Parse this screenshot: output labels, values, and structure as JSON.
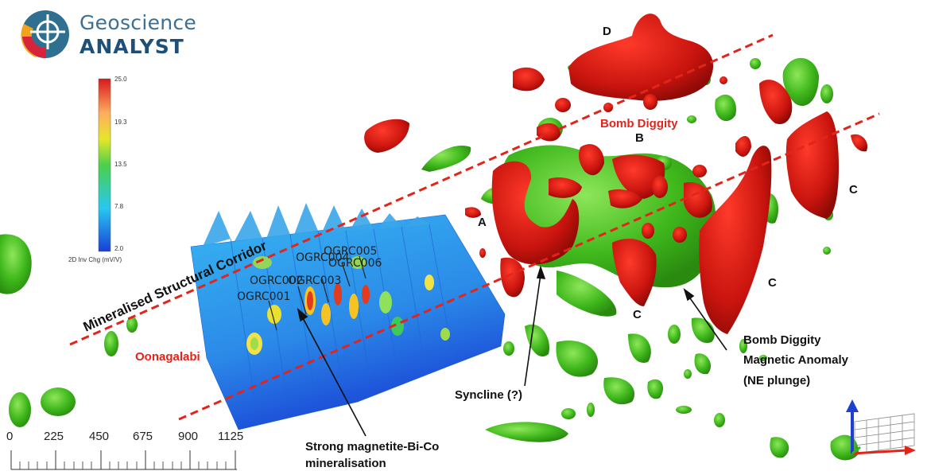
{
  "app": {
    "logo_line1": "Geoscience",
    "logo_line2": "ANALYST"
  },
  "colorbar": {
    "ticks": [
      "25.0",
      "19.3",
      "13.5",
      "7.8",
      "2.0"
    ],
    "unit": "2D Inv Chg (mV/V)"
  },
  "labels": {
    "corridor": "Mineralised Structural Corridor",
    "oonagalabi": "Oonagalabi",
    "bomb_diggity": "Bomb Diggity",
    "syncline": "Syncline (?)",
    "magnetite_line1": "Strong magnetite-Bi-Co",
    "magnetite_line2": "mineralisation",
    "anomaly_line1": "Bomb Diggity",
    "anomaly_line2": "Magnetic Anomaly",
    "anomaly_line3": "(NE plunge)"
  },
  "body_letters": [
    "A",
    "B",
    "C",
    "C",
    "C",
    "D"
  ],
  "drillholes": [
    "OGRC005",
    "OGRC006",
    "OGRC004",
    "OGRC003",
    "OGRC002",
    "OGRC001"
  ],
  "scale_bar": {
    "ticks": [
      "0",
      "225",
      "450",
      "675",
      "900",
      "1125"
    ]
  },
  "colors": {
    "conductive_red": "#d41c12",
    "magnetic_green": "#4fc31f",
    "annotation_red": "#e3241b"
  }
}
